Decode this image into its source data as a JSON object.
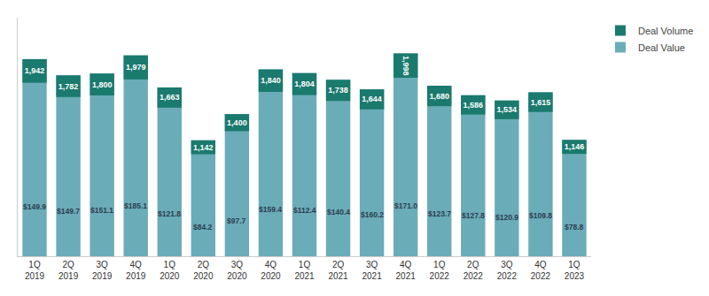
{
  "chart_data": {
    "type": "bar",
    "categories": [
      "1Q\n2019",
      "2Q\n2019",
      "3Q\n2019",
      "4Q\n2019",
      "1Q\n2020",
      "2Q\n2020",
      "3Q\n2020",
      "4Q\n2020",
      "1Q\n2021",
      "2Q\n2021",
      "3Q\n2021",
      "4Q\n2021",
      "1Q\n2022",
      "2Q\n2022",
      "3Q\n2022",
      "4Q\n2022",
      "1Q\n2023"
    ],
    "series": [
      {
        "name": "Deal Volume",
        "color": "#1a7a6e",
        "values": [
          1942,
          1782,
          1800,
          1979,
          1663,
          1142,
          1400,
          1840,
          1804,
          1738,
          1644,
          1998,
          1680,
          1586,
          1534,
          1615,
          1146
        ],
        "value_labels": [
          "1,942",
          "1,782",
          "1,800",
          "1,979",
          "1,663",
          "1,142",
          "1,400",
          "1,840",
          "1,804",
          "1,738",
          "1,644",
          "1,998",
          "1,680",
          "1,586",
          "1,534",
          "1,615",
          "1,146"
        ]
      },
      {
        "name": "Deal Value",
        "color": "#6aacb8",
        "type": "text",
        "values": [
          149.9,
          149.7,
          151.1,
          185.1,
          121.8,
          84.2,
          97.7,
          159.4,
          112.4,
          140.4,
          160.2,
          171.0,
          123.7,
          127.8,
          120.9,
          109.8,
          78.8
        ],
        "value_labels": [
          "$149.9",
          "$149.7",
          "$151.1",
          "$185.1",
          "$121.8",
          "$84.2",
          "$97.7",
          "$159.4",
          "$112.4",
          "$140.4",
          "$160.2",
          "$171.0",
          "$123.7",
          "$127.8",
          "$120.9",
          "$109.8",
          "$78.8"
        ]
      }
    ],
    "ylim": [
      0,
      2350
    ],
    "tick_labels": "x",
    "data_labels": true,
    "grid": false,
    "legend": "upper right"
  }
}
